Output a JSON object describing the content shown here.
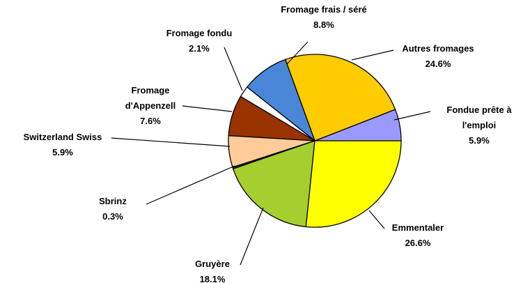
{
  "chart_data": {
    "type": "pie",
    "categories": [
      "Fondue prête à l'emploi",
      "Autres fromages",
      "Fromage frais / séré",
      "Fromage fondu",
      "Fromage d'Appenzell",
      "Switzerland Swiss",
      "Sbrinz",
      "Gruyère",
      "Emmentaler"
    ],
    "values": [
      5.9,
      24.6,
      8.8,
      2.1,
      7.6,
      5.9,
      0.3,
      18.1,
      26.6
    ],
    "value_labels": [
      "5.9%",
      "24.6%",
      "8.8%",
      "2.1%",
      "7.6%",
      "5.9%",
      "0.3%",
      "18.1%",
      "26.6%"
    ],
    "colors": [
      "#9999ff",
      "#ffcc00",
      "#4a86d8",
      "#ffffff",
      "#993300",
      "#ffcc99",
      "#333333",
      "#a5cf2f",
      "#ffff00"
    ]
  }
}
